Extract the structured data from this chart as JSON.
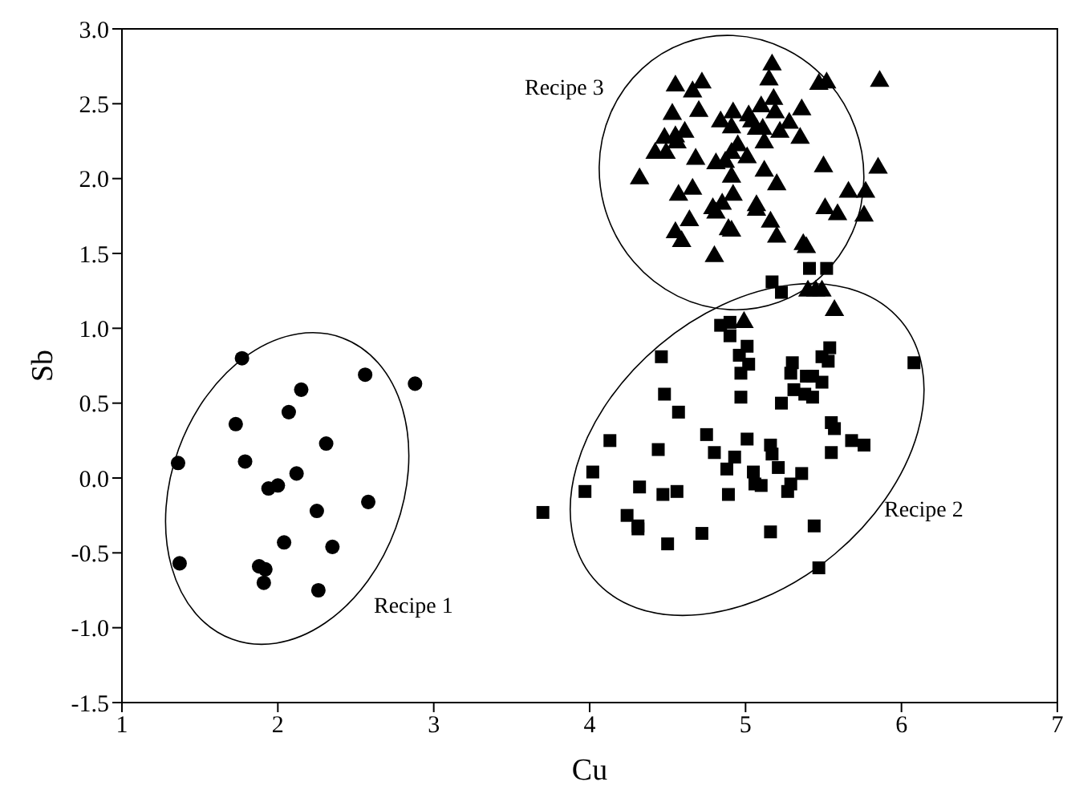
{
  "chart_data": {
    "type": "scatter",
    "xlabel": "Cu",
    "ylabel": "Sb",
    "xlim": [
      1,
      7
    ],
    "ylim": [
      -1.5,
      3
    ],
    "xticks": [
      1,
      2,
      3,
      4,
      5,
      6,
      7
    ],
    "yticks": [
      {
        "value": -1.5,
        "label": "-1.5"
      },
      {
        "value": -1,
        "label": "-1.0"
      },
      {
        "value": -0.5,
        "label": "-0.5"
      },
      {
        "value": 0,
        "label": "0.0"
      },
      {
        "value": 0.5,
        "label": "0.5"
      },
      {
        "value": 1,
        "label": "1.0"
      },
      {
        "value": 1.5,
        "label": "1.5"
      },
      {
        "value": 2,
        "label": "2.0"
      },
      {
        "value": 2.5,
        "label": "2.5"
      },
      {
        "value": 3,
        "label": "3.0"
      }
    ],
    "grid": false,
    "legend": false,
    "annotations": [
      "Recipe 1",
      "Recipe 2",
      "Recipe 3"
    ],
    "series": [
      {
        "color": "#000000",
        "marker": "circle",
        "x": [
          1.77,
          2.56,
          2.88,
          2.15,
          2.07,
          1.73,
          2.31,
          1.36,
          1.79,
          2.12,
          1.94,
          2.0,
          2.58,
          2.25,
          2.04,
          2.35,
          1.37,
          1.88,
          1.92,
          1.91,
          2.26
        ],
        "values": [
          0.8,
          0.69,
          0.63,
          0.59,
          0.44,
          0.36,
          0.23,
          0.1,
          0.11,
          0.03,
          -0.07,
          -0.05,
          -0.16,
          -0.22,
          -0.43,
          -0.46,
          -0.57,
          -0.59,
          -0.61,
          -0.7,
          -0.75
        ]
      },
      {
        "color": "#000000",
        "marker": "square",
        "x": [
          5.41,
          5.52,
          5.17,
          5.23,
          4.84,
          4.9,
          4.9,
          4.46,
          5.01,
          4.96,
          5.02,
          4.97,
          5.3,
          5.29,
          5.39,
          5.43,
          5.49,
          5.49,
          5.54,
          5.53,
          6.08,
          4.48,
          4.97,
          5.31,
          5.38,
          5.43,
          5.23,
          4.57,
          5.55,
          5.57,
          5.68,
          5.76,
          4.13,
          4.44,
          4.75,
          5.01,
          5.16,
          5.17,
          4.8,
          4.93,
          5.55,
          4.88,
          5.21,
          4.02,
          5.05,
          5.36,
          5.06,
          5.1,
          5.29,
          5.27,
          3.97,
          4.32,
          4.47,
          4.56,
          4.89,
          3.7,
          4.24,
          4.31,
          4.31,
          4.72,
          4.5,
          5.16,
          5.44,
          5.47
        ],
        "values": [
          1.4,
          1.4,
          1.31,
          1.24,
          1.02,
          1.04,
          0.95,
          0.81,
          0.88,
          0.82,
          0.76,
          0.7,
          0.77,
          0.7,
          0.68,
          0.68,
          0.64,
          0.81,
          0.87,
          0.78,
          0.77,
          0.56,
          0.54,
          0.59,
          0.56,
          0.54,
          0.5,
          0.44,
          0.37,
          0.33,
          0.25,
          0.22,
          0.25,
          0.19,
          0.29,
          0.26,
          0.22,
          0.16,
          0.17,
          0.14,
          0.17,
          0.06,
          0.07,
          0.04,
          0.04,
          0.03,
          -0.04,
          -0.05,
          -0.04,
          -0.09,
          -0.09,
          -0.06,
          -0.11,
          -0.09,
          -0.11,
          -0.23,
          -0.25,
          -0.32,
          -0.34,
          -0.37,
          -0.44,
          -0.36,
          -0.32,
          -0.6
        ]
      },
      {
        "color": "#000000",
        "marker": "triangle",
        "x": [
          5.17,
          4.55,
          4.72,
          4.66,
          5.15,
          5.47,
          5.52,
          5.86,
          5.18,
          5.1,
          4.53,
          4.7,
          4.92,
          5.19,
          5.36,
          4.84,
          4.91,
          5.02,
          5.04,
          5.07,
          5.11,
          5.28,
          5.22,
          5.35,
          5.12,
          4.61,
          4.48,
          4.55,
          4.56,
          4.42,
          4.49,
          4.95,
          4.91,
          4.68,
          4.81,
          4.87,
          5.01,
          4.32,
          5.12,
          4.91,
          5.2,
          5.5,
          5.85,
          4.57,
          4.66,
          4.92,
          5.66,
          5.77,
          4.85,
          4.79,
          4.81,
          5.07,
          5.07,
          5.51,
          5.59,
          5.76,
          4.64,
          5.16,
          4.89,
          4.91,
          4.55,
          5.2,
          4.59,
          5.37,
          5.39,
          4.8,
          5.4,
          5.45,
          5.49,
          5.57,
          4.99
        ],
        "values": [
          2.76,
          2.62,
          2.64,
          2.58,
          2.66,
          2.63,
          2.64,
          2.65,
          2.53,
          2.48,
          2.43,
          2.45,
          2.44,
          2.44,
          2.46,
          2.38,
          2.34,
          2.42,
          2.38,
          2.33,
          2.33,
          2.37,
          2.31,
          2.27,
          2.24,
          2.31,
          2.27,
          2.28,
          2.24,
          2.17,
          2.17,
          2.22,
          2.17,
          2.13,
          2.1,
          2.11,
          2.14,
          2.0,
          2.05,
          2.01,
          1.96,
          2.08,
          2.07,
          1.89,
          1.93,
          1.89,
          1.91,
          1.91,
          1.83,
          1.8,
          1.77,
          1.82,
          1.79,
          1.8,
          1.76,
          1.75,
          1.72,
          1.71,
          1.66,
          1.65,
          1.64,
          1.61,
          1.58,
          1.56,
          1.54,
          1.48,
          1.25,
          1.25,
          1.25,
          1.12,
          1.04
        ]
      }
    ]
  }
}
